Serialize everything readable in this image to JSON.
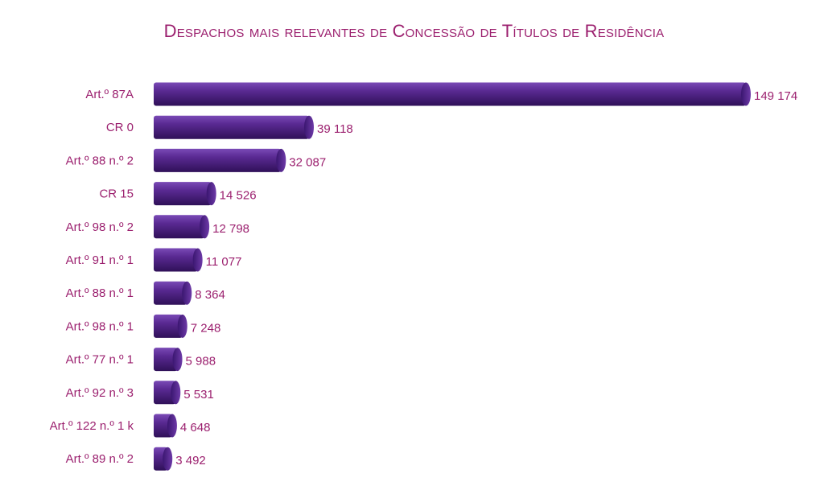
{
  "chart_data": {
    "type": "bar",
    "orientation": "horizontal",
    "title": "Despachos mais relevantes de Concessão de Títulos de Residência",
    "categories": [
      "Art.º 87A",
      "CR 0",
      "Art.º 88 n.º 2",
      "CR 15",
      "Art.º 98 n.º 2",
      "Art.º 91 n.º 1",
      "Art.º 88 n.º 1",
      "Art.º 98 n.º 1",
      "Art.º 77 n.º 1",
      "Art.º 92 n.º 3",
      "Art.º 122 n.º 1 k",
      "Art.º 89 n.º 2"
    ],
    "values": [
      149174,
      39118,
      32087,
      14526,
      12798,
      11077,
      8364,
      7248,
      5988,
      5531,
      4648,
      3492
    ],
    "value_labels": [
      "149 174",
      "39 118",
      "32 087",
      "14 526",
      "12 798",
      "11 077",
      "8 364",
      "7 248",
      "5 988",
      "5 531",
      "4 648",
      "3 492"
    ],
    "xlim": [
      0,
      149174
    ],
    "grid": false,
    "legend": "none",
    "colors": {
      "bar": "#4b1a7e",
      "bar_light": "#6e3aa8",
      "bar_dark": "#2e0f54",
      "text": "#9b1f6e"
    }
  }
}
